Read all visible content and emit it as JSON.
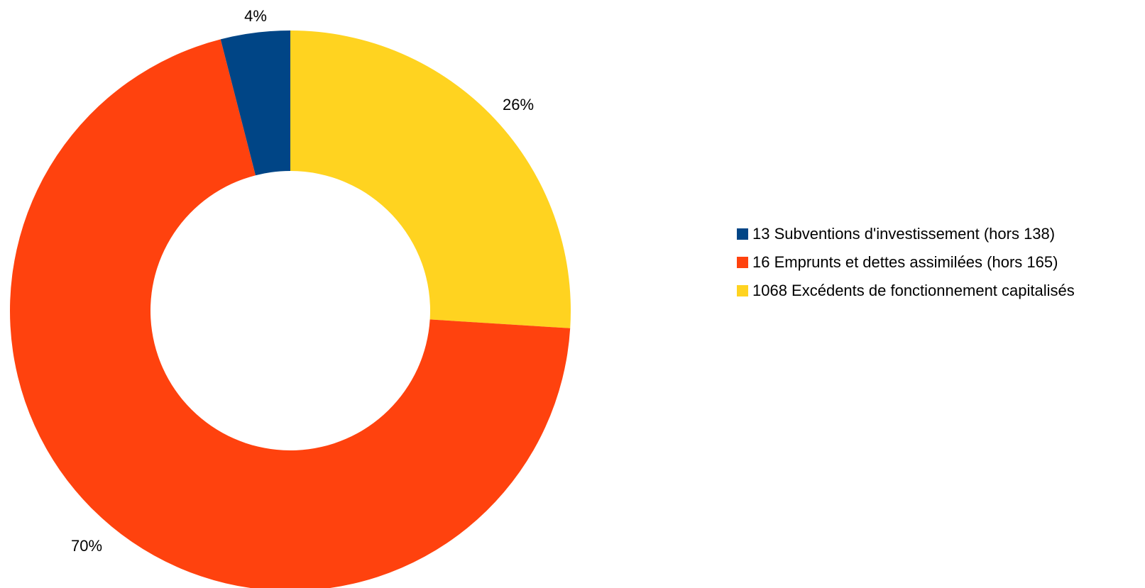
{
  "chart_data": {
    "type": "pie",
    "variant": "donut",
    "categories": [
      "13 Subventions d'investissement (hors 138)",
      "16 Emprunts et dettes assimilées (hors 165)",
      "1068 Excédents de fonctionnement capitalisés"
    ],
    "values": [
      4,
      70,
      26
    ],
    "data_labels": [
      "4%",
      "70%",
      "26%"
    ],
    "colors": [
      "#004586",
      "#ff420e",
      "#ffd320"
    ],
    "legend_position": "right"
  }
}
